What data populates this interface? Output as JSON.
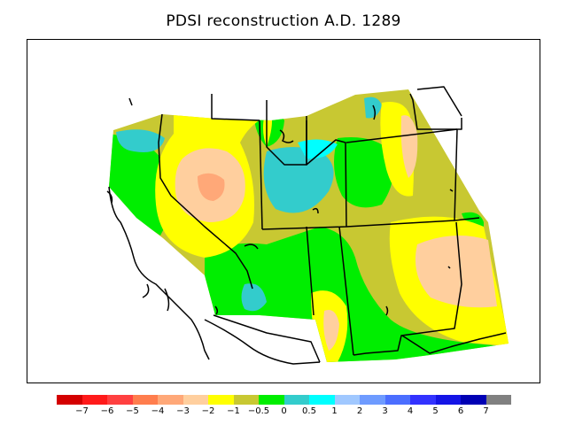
{
  "title": "PDSI reconstruction A.D. 1289",
  "legend": {
    "colors": [
      "#d40000",
      "#ff1a1a",
      "#ff4040",
      "#ff7d4d",
      "#ffa878",
      "#ffcf9e",
      "#ffff00",
      "#c8c832",
      "#00ee00",
      "#33cccc",
      "#00ffff",
      "#a0c8ff",
      "#6e9bff",
      "#4b6eff",
      "#3232ff",
      "#1414e6",
      "#0000b4",
      "#808080"
    ],
    "tick_labels": [
      "−7",
      "−6",
      "−5",
      "−4",
      "−3",
      "−2",
      "−1",
      "−0.5",
      "0",
      "0.5",
      "1",
      "2",
      "3",
      "4",
      "5",
      "6",
      "7"
    ]
  }
}
